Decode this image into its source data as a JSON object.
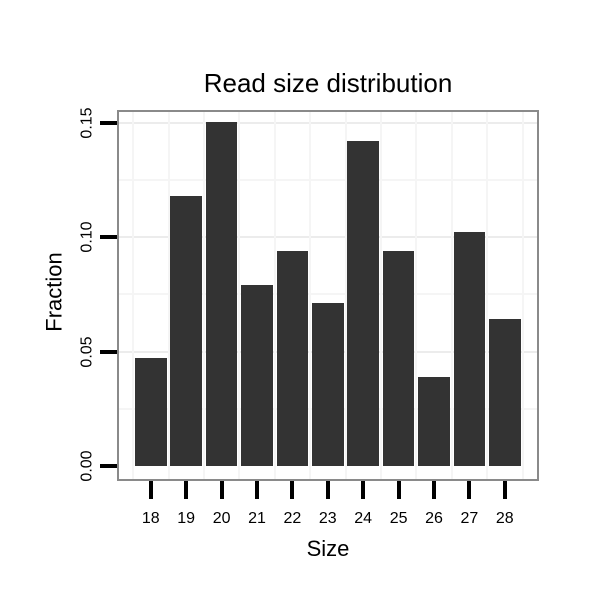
{
  "title": "Read size distribution",
  "chart_data": {
    "type": "bar",
    "title": "Read size distribution",
    "xlabel": "Size",
    "ylabel": "Fraction",
    "categories": [
      "18",
      "19",
      "20",
      "21",
      "22",
      "23",
      "24",
      "25",
      "26",
      "27",
      "28"
    ],
    "values": [
      0.047,
      0.118,
      0.15,
      0.079,
      0.094,
      0.071,
      0.142,
      0.094,
      0.039,
      0.102,
      0.064
    ],
    "y_tick_labels": [
      "0.00",
      "0.05",
      "0.10",
      "0.15"
    ],
    "y_tick_values": [
      0,
      0.05,
      0.1,
      0.15
    ],
    "ylim": [
      0,
      0.155
    ],
    "grid": {
      "horizontal_lines": [
        0.025,
        0.05,
        0.075,
        0.1,
        0.125,
        0.15
      ],
      "vertical_lines": "category-boundaries",
      "style": "very-faint"
    },
    "legend": "none",
    "bar_color": "#333333"
  },
  "colors": {
    "background": "#ffffff",
    "bar": "#333333",
    "panel_border": "#8a8a8a",
    "tick": "#000000",
    "text": "#000000",
    "grid_minor": "#f5f5f5",
    "grid_major": "#ececec"
  }
}
